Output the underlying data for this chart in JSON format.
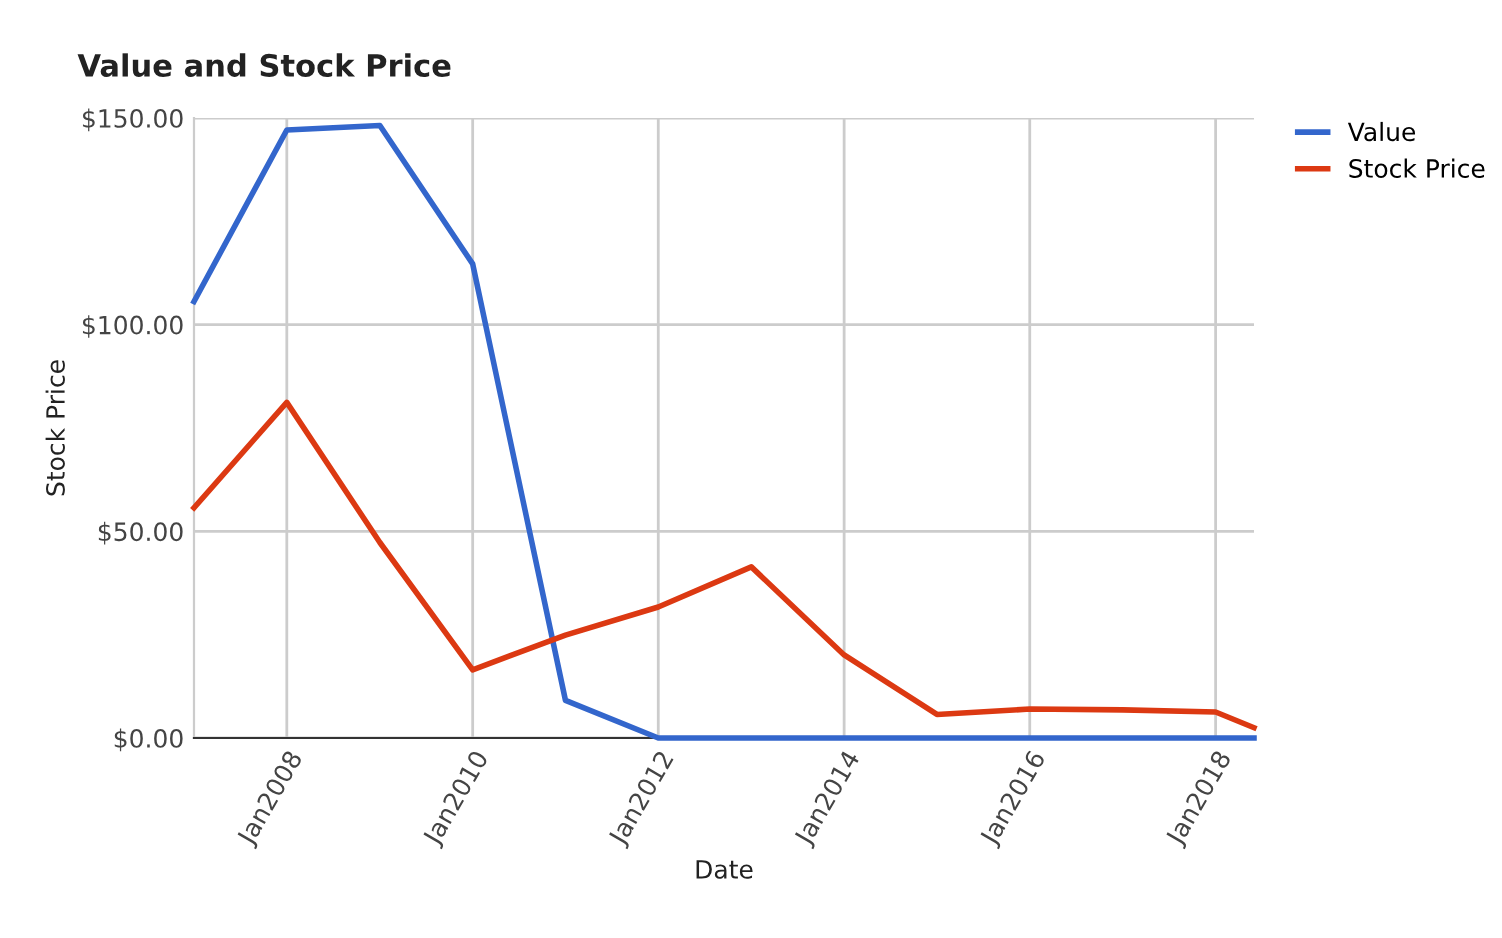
{
  "chart_data": {
    "type": "line",
    "title": "Value and Stock Price",
    "xlabel": "Date",
    "ylabel": "Stock Price",
    "x": [
      "2007-01",
      "2008-01",
      "2009-01",
      "2010-01",
      "2011-01",
      "2012-01",
      "2013-01",
      "2014-01",
      "2015-01",
      "2016-01",
      "2017-01",
      "2018-01",
      "2018-06"
    ],
    "series": [
      {
        "name": "Value",
        "color": "#3366cc",
        "values": [
          105.6,
          147.1,
          148.2,
          114.7,
          9.1,
          0,
          0,
          0,
          0,
          0,
          0,
          0,
          0
        ]
      },
      {
        "name": "Stock Price",
        "color": "#dc3912",
        "values": [
          55.7,
          81.2,
          47.3,
          16.5,
          24.9,
          31.7,
          41.4,
          20.1,
          5.7,
          7.0,
          6.8,
          6.3,
          2.5
        ]
      }
    ],
    "xlim": [
      "2007-01",
      "2018-06"
    ],
    "xticks": [
      {
        "value": "2008-01",
        "label": "Jan2008"
      },
      {
        "value": "2010-01",
        "label": "Jan2010"
      },
      {
        "value": "2012-01",
        "label": "Jan2012"
      },
      {
        "value": "2014-01",
        "label": "Jan2014"
      },
      {
        "value": "2016-01",
        "label": "Jan2016"
      },
      {
        "value": "2018-01",
        "label": "Jan2018"
      }
    ],
    "ylim": [
      0,
      150
    ],
    "yticks": [
      {
        "value": 0,
        "label": "$0.00"
      },
      {
        "value": 50,
        "label": "$50.00"
      },
      {
        "value": 100,
        "label": "$100.00"
      },
      {
        "value": 150,
        "label": "$150.00"
      }
    ],
    "grid": true,
    "legend": "top right",
    "marker": "none",
    "line_style": "solid"
  }
}
